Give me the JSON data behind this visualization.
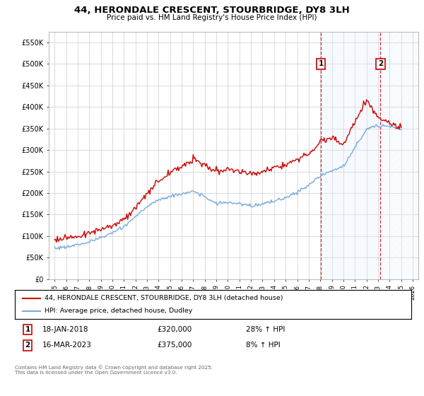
{
  "title": "44, HERONDALE CRESCENT, STOURBRIDGE, DY8 3LH",
  "subtitle": "Price paid vs. HM Land Registry's House Price Index (HPI)",
  "ylabel_ticks": [
    "£0",
    "£50K",
    "£100K",
    "£150K",
    "£200K",
    "£250K",
    "£300K",
    "£350K",
    "£400K",
    "£450K",
    "£500K",
    "£550K"
  ],
  "yvalues": [
    0,
    50000,
    100000,
    150000,
    200000,
    250000,
    300000,
    350000,
    400000,
    450000,
    500000,
    550000
  ],
  "ylim": [
    0,
    575000
  ],
  "xlim_start": 1994.5,
  "xlim_end": 2026.5,
  "transaction1": {
    "date": "18-JAN-2018",
    "year": 2018.05,
    "price": 320000,
    "label": "1",
    "hpi_pct": "28% ↑ HPI"
  },
  "transaction2": {
    "date": "16-MAR-2023",
    "year": 2023.21,
    "price": 375000,
    "label": "2",
    "hpi_pct": "8% ↑ HPI"
  },
  "legend_line1": "44, HERONDALE CRESCENT, STOURBRIDGE, DY8 3LH (detached house)",
  "legend_line2": "HPI: Average price, detached house, Dudley",
  "footer": "Contains HM Land Registry data © Crown copyright and database right 2025.\nThis data is licensed under the Open Government Licence v3.0.",
  "line_color_red": "#cc0000",
  "line_color_blue": "#7aaadd",
  "shaded_color": "#ddeeff",
  "background_color": "#ffffff",
  "grid_color": "#cccccc",
  "marker_box_color": "#cc0000",
  "hpi_years": [
    1995,
    1996,
    1997,
    1998,
    1999,
    2000,
    2001,
    2002,
    2003,
    2004,
    2005,
    2006,
    2007,
    2008,
    2009,
    2010,
    2011,
    2012,
    2013,
    2014,
    2015,
    2016,
    2017,
    2018,
    2019,
    2020,
    2021,
    2022,
    2023,
    2024,
    2025
  ],
  "hpi_values": [
    72000,
    75000,
    80000,
    87000,
    96000,
    107000,
    122000,
    145000,
    168000,
    185000,
    192000,
    198000,
    204000,
    192000,
    175000,
    178000,
    174000,
    171000,
    174000,
    181000,
    190000,
    202000,
    218000,
    240000,
    252000,
    262000,
    305000,
    348000,
    358000,
    355000,
    348000
  ],
  "red_years": [
    1995,
    1996,
    1997,
    1998,
    1999,
    2000,
    2001,
    2002,
    2003,
    2004,
    2005,
    2006,
    2007,
    2008,
    2009,
    2010,
    2011,
    2012,
    2013,
    2014,
    2015,
    2016,
    2017,
    2018,
    2019,
    2020,
    2021,
    2022,
    2023,
    2024,
    2025
  ],
  "red_values": [
    93000,
    96000,
    100000,
    107000,
    115000,
    125000,
    140000,
    165000,
    198000,
    228000,
    248000,
    262000,
    278000,
    265000,
    248000,
    255000,
    250000,
    245000,
    250000,
    258000,
    268000,
    278000,
    292000,
    320000,
    330000,
    312000,
    368000,
    415000,
    375000,
    360000,
    352000
  ]
}
